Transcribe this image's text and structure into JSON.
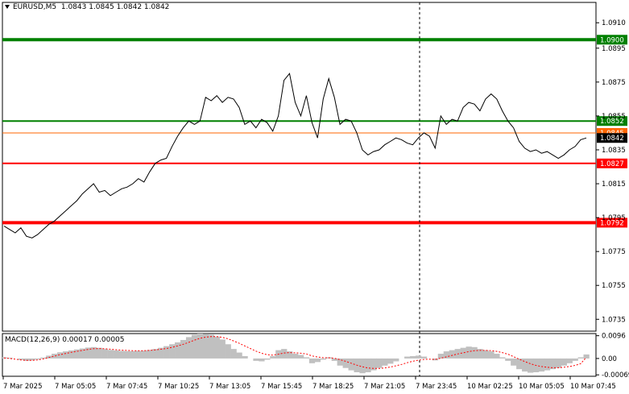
{
  "header": {
    "symbol": "EURUSD,M5",
    "ohlc": "1.0843 1.0845 1.0842 1.0842"
  },
  "macd_label": "MACD(12,26,9) 0.00017 0.00005",
  "colors": {
    "price_line": "#000000",
    "green_level": "#008000",
    "red_level": "#ff0000",
    "ask_line": "#ff6600",
    "histogram": "#c0c0c0",
    "signal": "#ff0000",
    "grid_text": "#000000"
  },
  "chart_data": [
    {
      "type": "line",
      "title": "EURUSD,M5",
      "ylim": [
        1.0728,
        1.0922
      ],
      "y_ticks": [
        "1.0910",
        "1.0895",
        "1.0875",
        "1.0855",
        "1.0835",
        "1.0815",
        "1.0795",
        "1.0775",
        "1.0755",
        "1.0735"
      ],
      "x_ticks": [
        "7 Mar 2025",
        "7 Mar 05:05",
        "7 Mar 07:45",
        "7 Mar 10:25",
        "7 Mar 13:05",
        "7 Mar 15:45",
        "7 Mar 18:25",
        "7 Mar 21:05",
        "7 Mar 23:45",
        "10 Mar 02:25",
        "10 Mar 05:05",
        "10 Mar 07:45"
      ],
      "levels": [
        {
          "label": "1.0900",
          "value": 1.09,
          "color": "#008000",
          "weight": "thick"
        },
        {
          "label": "1.0852",
          "value": 1.0852,
          "color": "#008000",
          "weight": "normal"
        },
        {
          "label": "1.0845",
          "value": 1.0845,
          "color": "#ff6600",
          "weight": "thin"
        },
        {
          "label": "1.0842",
          "value": 1.0842,
          "color": "#000000",
          "weight": "current"
        },
        {
          "label": "1.0827",
          "value": 1.0827,
          "color": "#ff0000",
          "weight": "normal"
        },
        {
          "label": "1.0792",
          "value": 1.0792,
          "color": "#ff0000",
          "weight": "thick"
        }
      ],
      "series": [
        {
          "values": [
            1.079,
            1.0788,
            1.0786,
            1.0789,
            1.0784,
            1.0783,
            1.0785,
            1.0788,
            1.0791,
            1.0793,
            1.0796,
            1.0799,
            1.0802,
            1.0805,
            1.0809,
            1.0812,
            1.0815,
            1.081,
            1.0811,
            1.0808,
            1.081,
            1.0812,
            1.0813,
            1.0815,
            1.0818,
            1.0816,
            1.0822,
            1.0827,
            1.0829,
            1.083,
            1.0837,
            1.0843,
            1.0848,
            1.0852,
            1.085,
            1.0852,
            1.0866,
            1.0864,
            1.0867,
            1.0863,
            1.0866,
            1.0865,
            1.086,
            1.085,
            1.0852,
            1.0848,
            1.0853,
            1.0851,
            1.0846,
            1.0855,
            1.0876,
            1.088,
            1.0863,
            1.0855,
            1.0867,
            1.0851,
            1.0842,
            1.0865,
            1.0877,
            1.0866,
            1.085,
            1.0853,
            1.0852,
            1.0845,
            1.0835,
            1.0832,
            1.0834,
            1.0835,
            1.0838,
            1.084,
            1.0842,
            1.0841,
            1.0839,
            1.0838,
            1.0842,
            1.0845,
            1.0843,
            1.0836,
            1.0855,
            1.085,
            1.0853,
            1.0852,
            1.086,
            1.0863,
            1.0862,
            1.0858,
            1.0865,
            1.0868,
            1.0865,
            1.0858,
            1.0852,
            1.0848,
            1.084,
            1.0836,
            1.0834,
            1.0835,
            1.0833,
            1.0834,
            1.0832,
            1.083,
            1.0832,
            1.0835,
            1.0837,
            1.0841,
            1.0842
          ]
        }
      ]
    },
    {
      "type": "bar",
      "title": "MACD(12,26,9) 0.00017 0.00005",
      "ylim": [
        -0.00075,
        0.00105
      ],
      "y_ticks": [
        "0.0096",
        "0.00",
        "-0.00069"
      ],
      "x_ticks": [
        "7 Mar 2025",
        "7 Mar 05:05",
        "7 Mar 07:45",
        "7 Mar 10:25",
        "7 Mar 13:05",
        "7 Mar 15:45",
        "7 Mar 18:25",
        "7 Mar 21:05",
        "7 Mar 23:45",
        "10 Mar 02:25",
        "10 Mar 05:05",
        "10 Mar 07:45"
      ],
      "series": [
        {
          "values": [
            5e-05,
            3e-05,
            0.0,
            -6e-05,
            -0.0001,
            -8e-05,
            -4e-05,
            4e-05,
            0.00012,
            0.0002,
            0.00026,
            0.0003,
            0.00034,
            0.00038,
            0.00042,
            0.00046,
            0.00048,
            0.00045,
            0.0004,
            0.00036,
            0.00034,
            0.00032,
            0.00031,
            0.00031,
            0.00032,
            0.00033,
            0.00036,
            0.0004,
            0.00045,
            0.00052,
            0.0006,
            0.00068,
            0.00078,
            0.0009,
            0.001,
            0.00105,
            0.00104,
            0.001,
            0.00092,
            0.0008,
            0.0006,
            0.0004,
            0.00025,
            0.0001,
            0.0,
            -0.0001,
            -0.00012,
            -5e-05,
            0.0001,
            0.00035,
            0.0004,
            0.0003,
            0.0002,
            0.00015,
            5e-05,
            -0.0002,
            -0.00015,
            -5e-05,
            5e-05,
            -0.0001,
            -0.0003,
            -0.0004,
            -0.0005,
            -0.00058,
            -0.00062,
            -0.00058,
            -0.0005,
            -0.0004,
            -0.0003,
            -0.00022,
            -0.00012,
            0.0,
            8e-05,
            0.0001,
            0.00012,
            8e-05,
            0.0,
            -8e-05,
            0.0002,
            0.0003,
            0.00035,
            0.0004,
            0.00045,
            0.0005,
            0.00048,
            0.0004,
            0.00035,
            0.0003,
            0.0002,
            5e-05,
            -0.0001,
            -0.0003,
            -0.00045,
            -0.00055,
            -0.0006,
            -0.00058,
            -0.00055,
            -0.0005,
            -0.00045,
            -0.0004,
            -0.0003,
            -0.0002,
            -0.0001,
            5e-05,
            0.00017
          ]
        },
        {
          "values": [
            2e-05,
            0.0,
            -3e-05,
            -6e-05,
            -8e-05,
            -8e-05,
            -6e-05,
            -2e-05,
            4e-05,
            0.0001,
            0.00016,
            0.00021,
            0.00026,
            0.0003,
            0.00034,
            0.00038,
            0.00041,
            0.00042,
            0.00041,
            0.00039,
            0.00037,
            0.00035,
            0.00034,
            0.00033,
            0.00033,
            0.00033,
            0.00034,
            0.00036,
            0.00039,
            0.00042,
            0.00047,
            0.00053,
            0.0006,
            0.00068,
            0.00077,
            0.00085,
            0.0009,
            0.00092,
            0.00092,
            0.00089,
            0.00083,
            0.00074,
            0.00064,
            0.00053,
            0.00042,
            0.00031,
            0.00022,
            0.00016,
            0.00014,
            0.00018,
            0.00023,
            0.00025,
            0.00024,
            0.00022,
            0.00019,
            0.00011,
            6e-05,
            3e-05,
            3e-05,
            1e-05,
            -5e-05,
            -0.00012,
            -0.0002,
            -0.00028,
            -0.00035,
            -0.0004,
            -0.00042,
            -0.00042,
            -0.0004,
            -0.00036,
            -0.00031,
            -0.00025,
            -0.00018,
            -0.00012,
            -7e-05,
            -4e-05,
            -3e-05,
            -4e-05,
            1e-05,
            7e-05,
            0.00013,
            0.00019,
            0.00024,
            0.00029,
            0.00033,
            0.00034,
            0.00034,
            0.00033,
            0.0003,
            0.00025,
            0.00018,
            8e-05,
            -3e-05,
            -0.00013,
            -0.00022,
            -0.00029,
            -0.00034,
            -0.00037,
            -0.00039,
            -0.00039,
            -0.00037,
            -0.00034,
            -0.00029,
            -0.00022,
            5e-05
          ]
        }
      ]
    }
  ]
}
